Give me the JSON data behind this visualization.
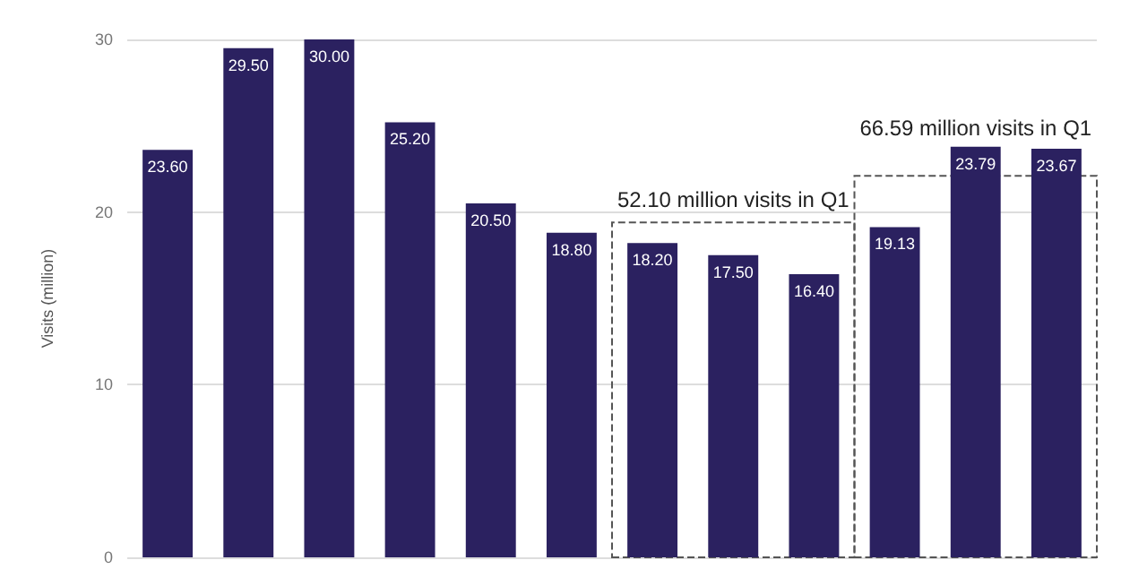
{
  "chart_data": {
    "type": "bar",
    "ylabel": "Visits (million)",
    "categories": [
      null,
      null,
      null,
      null,
      null,
      null,
      null,
      null,
      null,
      null,
      null,
      null
    ],
    "values": [
      23.6,
      29.5,
      30,
      25.2,
      20.5,
      18.8,
      18.2,
      17.5,
      16.4,
      19.13,
      23.79,
      23.67
    ],
    "value_labels": [
      "23.60",
      "29.50",
      "30.00",
      "25.20",
      "20.50",
      "18.80",
      "18.20",
      "17.50",
      "16.40",
      "19.13",
      "23.79",
      "23.67"
    ],
    "color": "#2b2160",
    "ylim": [
      0,
      30
    ],
    "yticks": [
      0,
      10,
      20,
      30
    ],
    "grid": "y",
    "annotations": [
      "52.10 million visits in Q1",
      "66.59 million visits in Q1"
    ]
  }
}
